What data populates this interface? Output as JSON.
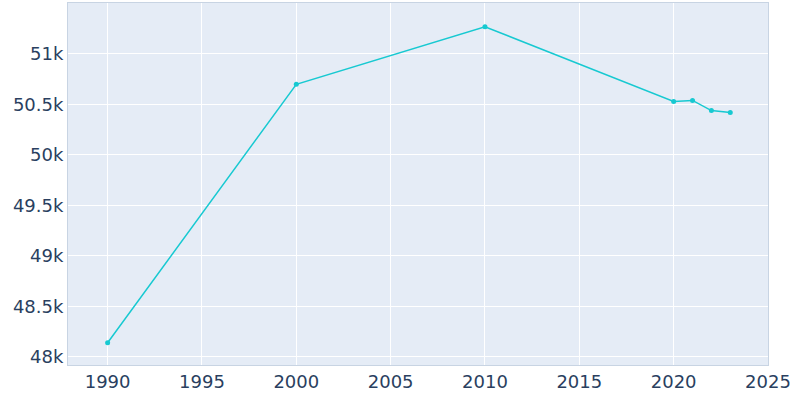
{
  "chart_data": {
    "type": "line",
    "x": [
      1990,
      2000,
      2010,
      2020,
      2021,
      2022,
      2023
    ],
    "values": [
      48140,
      50700,
      51270,
      50530,
      50540,
      50440,
      50420
    ],
    "color": "#17c9d1",
    "marker": "circle",
    "xlim": [
      1987.9,
      2025
    ],
    "xticks": [
      1990,
      1995,
      2000,
      2005,
      2010,
      2015,
      2020,
      2025
    ],
    "ylim": [
      47920,
      51505
    ],
    "yticks": [
      {
        "value": 48000,
        "label": "48k"
      },
      {
        "value": 48500,
        "label": "48.5k"
      },
      {
        "value": 49000,
        "label": "49k"
      },
      {
        "value": 49500,
        "label": "49.5k"
      },
      {
        "value": 50000,
        "label": "50k"
      },
      {
        "value": 50500,
        "label": "50.5k"
      },
      {
        "value": 51000,
        "label": "51k"
      }
    ],
    "grid": true
  }
}
